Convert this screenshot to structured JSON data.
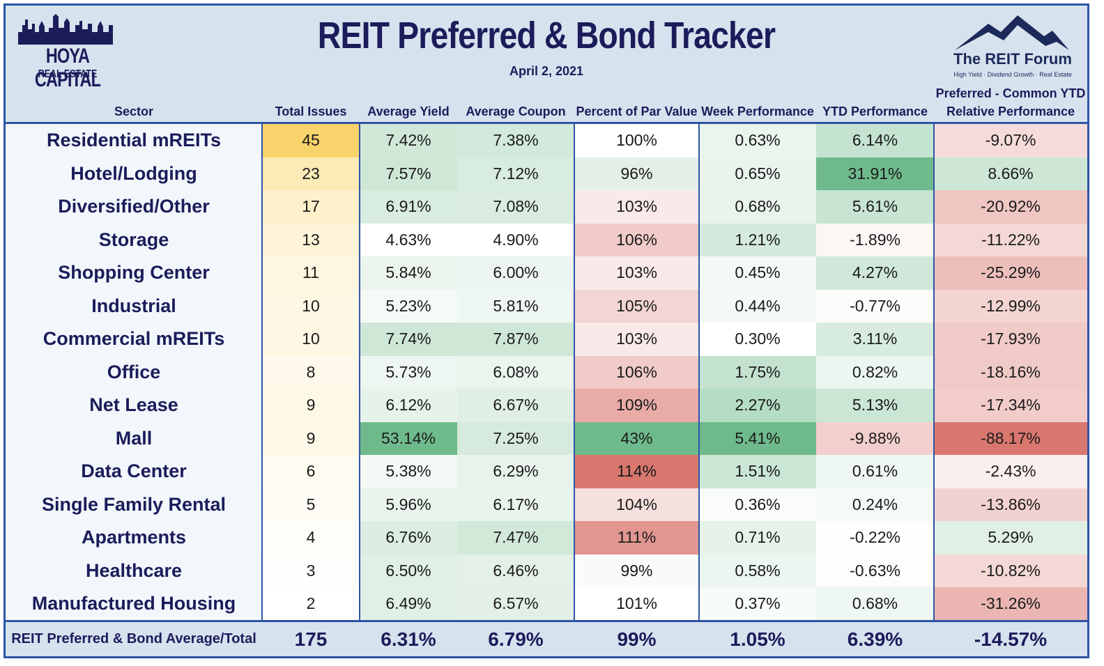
{
  "header": {
    "title": "REIT Preferred & Bond Tracker",
    "date": "April 2, 2021",
    "logo_left_line1": "HOYA CAPITAL",
    "logo_left_line2": "REAL ESTATE",
    "logo_right_line1": "The REIT Forum",
    "logo_right_line2": "High Yield · Dividend Growth · Real Estate"
  },
  "colors": {
    "border": "#2e54a6",
    "header_bg": "#d7e2ef",
    "title_text": "#1b1c5a",
    "high_green": "#6fba8c",
    "high_red": "#d9776f",
    "high_yellow": "#f8d36b"
  },
  "chart_data": {
    "type": "table",
    "title": "REIT Preferred & Bond Tracker",
    "subtitle": "April 2, 2021",
    "columns": [
      "Sector",
      "Total Issues",
      "Average Yield",
      "Average Coupon",
      "Percent of Par Value",
      "Week Performance",
      "YTD Performance",
      "Preferred - Common YTD Relative Performance"
    ],
    "rows": [
      [
        "Residential mREITs",
        "45",
        "7.42%",
        "7.38%",
        "100%",
        "0.63%",
        "6.14%",
        "-9.07%"
      ],
      [
        "Hotel/Lodging",
        "23",
        "7.57%",
        "7.12%",
        "96%",
        "0.65%",
        "31.91%",
        "8.66%"
      ],
      [
        "Diversified/Other",
        "17",
        "6.91%",
        "7.08%",
        "103%",
        "0.68%",
        "5.61%",
        "-20.92%"
      ],
      [
        "Storage",
        "13",
        "4.63%",
        "4.90%",
        "106%",
        "1.21%",
        "-1.89%",
        "-11.22%"
      ],
      [
        "Shopping Center",
        "11",
        "5.84%",
        "6.00%",
        "103%",
        "0.45%",
        "4.27%",
        "-25.29%"
      ],
      [
        "Industrial",
        "10",
        "5.23%",
        "5.81%",
        "105%",
        "0.44%",
        "-0.77%",
        "-12.99%"
      ],
      [
        "Commercial mREITs",
        "10",
        "7.74%",
        "7.87%",
        "103%",
        "0.30%",
        "3.11%",
        "-17.93%"
      ],
      [
        "Office",
        "8",
        "5.73%",
        "6.08%",
        "106%",
        "1.75%",
        "0.82%",
        "-18.16%"
      ],
      [
        "Net Lease",
        "9",
        "6.12%",
        "6.67%",
        "109%",
        "2.27%",
        "5.13%",
        "-17.34%"
      ],
      [
        "Mall",
        "9",
        "53.14%",
        "7.25%",
        "43%",
        "5.41%",
        "-9.88%",
        "-88.17%"
      ],
      [
        "Data Center",
        "6",
        "5.38%",
        "6.29%",
        "114%",
        "1.51%",
        "0.61%",
        "-2.43%"
      ],
      [
        "Single Family Rental",
        "5",
        "5.96%",
        "6.17%",
        "104%",
        "0.36%",
        "0.24%",
        "-13.86%"
      ],
      [
        "Apartments",
        "4",
        "6.76%",
        "7.47%",
        "111%",
        "0.71%",
        "-0.22%",
        "5.29%"
      ],
      [
        "Healthcare",
        "3",
        "6.50%",
        "6.46%",
        "99%",
        "0.58%",
        "-0.63%",
        "-10.82%"
      ],
      [
        "Manufactured Housing",
        "2",
        "6.49%",
        "6.57%",
        "101%",
        "0.37%",
        "0.68%",
        "-31.26%"
      ]
    ],
    "totals": [
      "REIT Preferred & Bond Average/Total",
      "175",
      "6.31%",
      "6.79%",
      "99%",
      "1.05%",
      "6.39%",
      "-14.57%"
    ]
  }
}
